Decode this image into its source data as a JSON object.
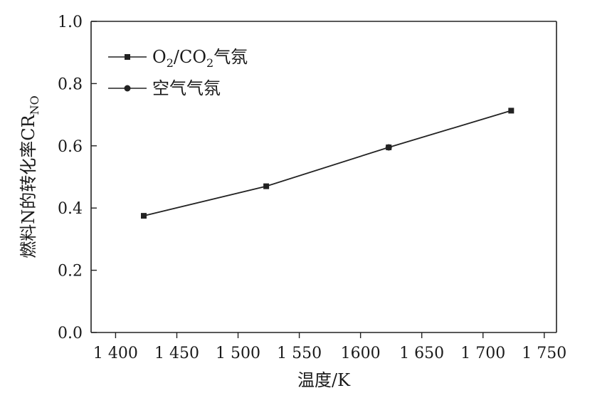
{
  "chart_data": {
    "type": "line",
    "title": "",
    "xlabel": "温度/K",
    "ylabel": "燃料N的转化率CR",
    "ylabel_subscript": "NO",
    "xlim": [
      1380,
      1760
    ],
    "ylim": [
      0.0,
      1.0
    ],
    "x_ticks": [
      1400,
      1450,
      1500,
      1550,
      1600,
      1650,
      1700,
      1750
    ],
    "x_tick_labels": [
      "1 400",
      "1 450",
      "1 500",
      "1 550",
      "1600",
      "1 650",
      "1 700",
      "1 750"
    ],
    "y_ticks": [
      0.0,
      0.2,
      0.4,
      0.6,
      0.8,
      1.0
    ],
    "y_tick_labels": [
      "0.0",
      "0.2",
      "0.4",
      "0.6",
      "0.8",
      "1.0"
    ],
    "grid": false,
    "legend": "top-left",
    "series": [
      {
        "name": "O2/CO2气氛",
        "legend_parts": {
          "a": "O",
          "a_sub": "2",
          "b": "/CO",
          "b_sub": "2",
          "c": "气氛"
        },
        "marker": "square",
        "x": [
          1423,
          1523,
          1623,
          1723
        ],
        "y": [
          0.375,
          0.47,
          0.595,
          0.713
        ]
      },
      {
        "name": "空气气氛",
        "marker": "circle",
        "x": [
          1623
        ],
        "y": [
          0.595
        ]
      }
    ]
  }
}
